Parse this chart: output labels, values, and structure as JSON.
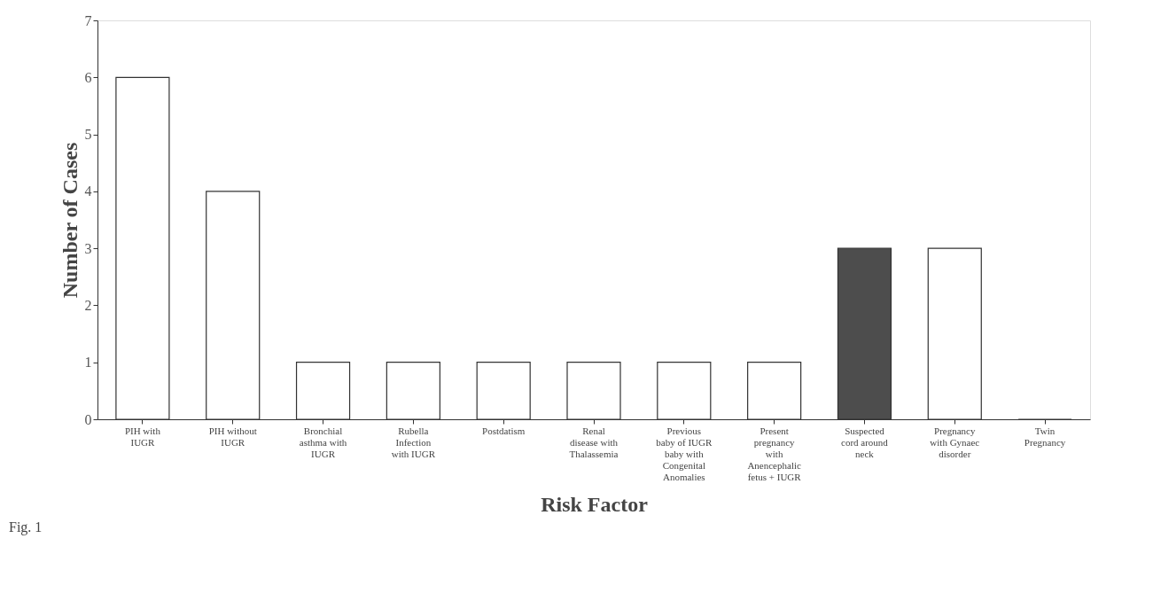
{
  "chart_data": {
    "type": "bar",
    "xlabel": "Risk Factor",
    "ylabel": "Number of Cases",
    "categories": [
      "PIH with IUGR",
      "PIH without IUGR",
      "Bronchial asthma with IUGR",
      "Rubella Infection with IUGR",
      "Postdatism",
      "Renal disease with Thalassemia",
      "Previous baby of IUGR baby with Congenital Anomalies",
      "Present pregnancy with Anencephalic fetus + IUGR",
      "Suspected cord around neck",
      "Pregnancy with Gynaec disorder",
      "Twin Pregnancy"
    ],
    "values": [
      6,
      4,
      1,
      1,
      1,
      1,
      1,
      1,
      3,
      3,
      0
    ],
    "colors": [
      "#ffffff",
      "#ffffff",
      "#ffffff",
      "#ffffff",
      "#ffffff",
      "#ffffff",
      "#ffffff",
      "#ffffff",
      "#4d4d4d",
      "#ffffff",
      "#333333"
    ],
    "ylim": [
      0,
      7
    ],
    "yticks": [
      0,
      1,
      2,
      3,
      4,
      5,
      6,
      7
    ],
    "grid": false,
    "annotations": [
      "Fig. 1"
    ]
  }
}
